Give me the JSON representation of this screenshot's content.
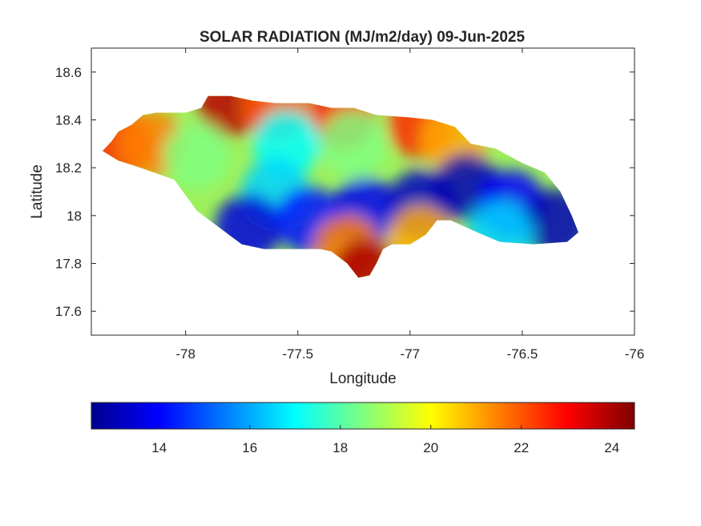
{
  "figure": {
    "title": "SOLAR RADIATION (MJ/m2/day) 09-Jun-2025",
    "xlabel": "Longitude",
    "ylabel": "Latitude"
  },
  "axes": {
    "xlim": [
      -78.42,
      -76.0
    ],
    "ylim": [
      17.5,
      18.7
    ],
    "xticks": [
      -78,
      -77.5,
      -77,
      -76.5,
      -76
    ],
    "xtick_labels": [
      "-78",
      "-77.5",
      "-77",
      "-76.5",
      "-76"
    ],
    "yticks": [
      17.6,
      17.8,
      18.0,
      18.2,
      18.4,
      18.6
    ],
    "ytick_labels": [
      "17.6",
      "17.8",
      "18",
      "18.2",
      "18.4",
      "18.6"
    ],
    "grid": false
  },
  "colorbar": {
    "range": [
      12.5,
      24.5
    ],
    "ticks": [
      14,
      16,
      18,
      20,
      22,
      24
    ],
    "tick_labels": [
      "14",
      "16",
      "18",
      "20",
      "22",
      "24"
    ],
    "colormap": "jet",
    "colors": [
      "#00008f",
      "#0000ff",
      "#00ffff",
      "#ffff00",
      "#ff0000",
      "#800000"
    ],
    "placement": "bottom"
  },
  "chart_data": {
    "type": "heatmap",
    "variable": "SOLAR RADIATION (MJ/m2/day)",
    "date": "09-Jun-2025",
    "region_outline": [
      [
        -78.37,
        18.27
      ],
      [
        -78.33,
        18.31
      ],
      [
        -78.3,
        18.35
      ],
      [
        -78.24,
        18.38
      ],
      [
        -78.19,
        18.42
      ],
      [
        -78.13,
        18.43
      ],
      [
        -78.0,
        18.43
      ],
      [
        -77.93,
        18.45
      ],
      [
        -77.9,
        18.5
      ],
      [
        -77.8,
        18.5
      ],
      [
        -77.7,
        18.48
      ],
      [
        -77.6,
        18.47
      ],
      [
        -77.45,
        18.47
      ],
      [
        -77.35,
        18.45
      ],
      [
        -77.25,
        18.45
      ],
      [
        -77.15,
        18.42
      ],
      [
        -77.0,
        18.41
      ],
      [
        -76.9,
        18.4
      ],
      [
        -76.8,
        18.37
      ],
      [
        -76.73,
        18.3
      ],
      [
        -76.62,
        18.28
      ],
      [
        -76.5,
        18.22
      ],
      [
        -76.4,
        18.18
      ],
      [
        -76.33,
        18.1
      ],
      [
        -76.28,
        18.0
      ],
      [
        -76.25,
        17.93
      ],
      [
        -76.3,
        17.89
      ],
      [
        -76.45,
        17.88
      ],
      [
        -76.6,
        17.89
      ],
      [
        -76.7,
        17.93
      ],
      [
        -76.82,
        17.98
      ],
      [
        -76.88,
        17.98
      ],
      [
        -76.93,
        17.92
      ],
      [
        -77.0,
        17.88
      ],
      [
        -77.08,
        17.88
      ],
      [
        -77.12,
        17.86
      ],
      [
        -77.15,
        17.8
      ],
      [
        -77.18,
        17.75
      ],
      [
        -77.23,
        17.74
      ],
      [
        -77.28,
        17.8
      ],
      [
        -77.35,
        17.85
      ],
      [
        -77.4,
        17.86
      ],
      [
        -77.5,
        17.86
      ],
      [
        -77.65,
        17.86
      ],
      [
        -77.75,
        17.88
      ],
      [
        -77.85,
        17.95
      ],
      [
        -77.95,
        18.02
      ],
      [
        -78.05,
        18.15
      ],
      [
        -78.2,
        18.2
      ],
      [
        -78.3,
        18.23
      ]
    ],
    "field_features": [
      {
        "lon": -78.3,
        "lat": 18.3,
        "value": 22.5
      },
      {
        "lon": -78.15,
        "lat": 18.3,
        "value": 21.5
      },
      {
        "lon": -77.8,
        "lat": 18.47,
        "value": 23.8
      },
      {
        "lon": -77.6,
        "lat": 18.45,
        "value": 22.0
      },
      {
        "lon": -77.3,
        "lat": 18.42,
        "value": 22.8
      },
      {
        "lon": -76.95,
        "lat": 18.38,
        "value": 22.5
      },
      {
        "lon": -76.8,
        "lat": 18.32,
        "value": 21.0
      },
      {
        "lon": -77.95,
        "lat": 18.25,
        "value": 18.5
      },
      {
        "lon": -77.55,
        "lat": 18.3,
        "value": 17.0
      },
      {
        "lon": -77.25,
        "lat": 18.3,
        "value": 18.5
      },
      {
        "lon": -77.6,
        "lat": 18.1,
        "value": 16.5
      },
      {
        "lon": -77.72,
        "lat": 17.95,
        "value": 13.5
      },
      {
        "lon": -77.45,
        "lat": 17.98,
        "value": 14.2
      },
      {
        "lon": -77.2,
        "lat": 18.02,
        "value": 13.8
      },
      {
        "lon": -76.95,
        "lat": 18.05,
        "value": 13.2
      },
      {
        "lon": -76.75,
        "lat": 18.12,
        "value": 13.0
      },
      {
        "lon": -76.55,
        "lat": 18.05,
        "value": 14.0
      },
      {
        "lon": -76.35,
        "lat": 17.97,
        "value": 13.0
      },
      {
        "lon": -76.6,
        "lat": 17.92,
        "value": 16.5
      },
      {
        "lon": -76.95,
        "lat": 17.9,
        "value": 21.0
      },
      {
        "lon": -77.28,
        "lat": 17.86,
        "value": 21.5
      },
      {
        "lon": -77.2,
        "lat": 17.76,
        "value": 24.0
      }
    ]
  }
}
